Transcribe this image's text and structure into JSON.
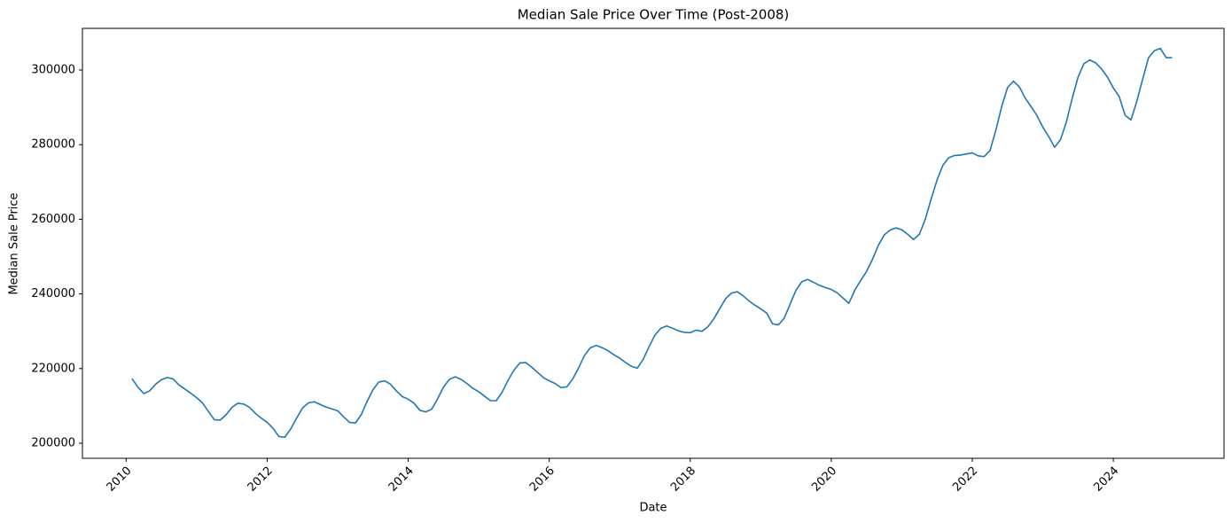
{
  "chart_data": {
    "type": "line",
    "title": "Median Sale Price Over Time (Post-2008)",
    "x_label": "Date",
    "y_label": "Median Sale Price",
    "x": [
      2010.083,
      2010.167,
      2010.25,
      2010.333,
      2010.417,
      2010.5,
      2010.583,
      2010.667,
      2010.75,
      2010.833,
      2010.917,
      2011,
      2011.083,
      2011.167,
      2011.25,
      2011.333,
      2011.417,
      2011.5,
      2011.583,
      2011.667,
      2011.75,
      2011.833,
      2011.917,
      2012,
      2012.083,
      2012.167,
      2012.25,
      2012.333,
      2012.417,
      2012.5,
      2012.583,
      2012.667,
      2012.75,
      2012.833,
      2012.917,
      2013,
      2013.083,
      2013.167,
      2013.25,
      2013.333,
      2013.417,
      2013.5,
      2013.583,
      2013.667,
      2013.75,
      2013.833,
      2013.917,
      2014,
      2014.083,
      2014.167,
      2014.25,
      2014.333,
      2014.417,
      2014.5,
      2014.583,
      2014.667,
      2014.75,
      2014.833,
      2014.917,
      2015,
      2015.083,
      2015.167,
      2015.25,
      2015.333,
      2015.417,
      2015.5,
      2015.583,
      2015.667,
      2015.75,
      2015.833,
      2015.917,
      2016,
      2016.083,
      2016.167,
      2016.25,
      2016.333,
      2016.417,
      2016.5,
      2016.583,
      2016.667,
      2016.75,
      2016.833,
      2016.917,
      2017,
      2017.083,
      2017.167,
      2017.25,
      2017.333,
      2017.417,
      2017.5,
      2017.583,
      2017.667,
      2017.75,
      2017.833,
      2017.917,
      2018,
      2018.083,
      2018.167,
      2018.25,
      2018.333,
      2018.417,
      2018.5,
      2018.583,
      2018.667,
      2018.75,
      2018.833,
      2018.917,
      2019,
      2019.083,
      2019.167,
      2019.25,
      2019.333,
      2019.417,
      2019.5,
      2019.583,
      2019.667,
      2019.75,
      2019.833,
      2019.917,
      2020,
      2020.083,
      2020.167,
      2020.25,
      2020.333,
      2020.417,
      2020.5,
      2020.583,
      2020.667,
      2020.75,
      2020.833,
      2020.917,
      2021,
      2021.083,
      2021.167,
      2021.25,
      2021.333,
      2021.417,
      2021.5,
      2021.583,
      2021.667,
      2021.75,
      2021.833,
      2021.917,
      2022,
      2022.083,
      2022.167,
      2022.25,
      2022.333,
      2022.417,
      2022.5,
      2022.583,
      2022.667,
      2022.75,
      2022.833,
      2022.917,
      2023,
      2023.083,
      2023.167,
      2023.25,
      2023.333,
      2023.417,
      2023.5,
      2023.583,
      2023.667,
      2023.75,
      2023.833,
      2023.917,
      2024,
      2024.083,
      2024.167,
      2024.25,
      2024.333,
      2024.417,
      2024.5,
      2024.583,
      2024.667,
      2024.75,
      2024.833
    ],
    "series": [
      {
        "color": "#1f77b4",
        "values": [
          217300,
          215000,
          213300,
          214000,
          215800,
          217000,
          217600,
          217200,
          215600,
          214500,
          213400,
          212200,
          210800,
          208500,
          206300,
          206200,
          207600,
          209600,
          210700,
          210500,
          209600,
          208000,
          206700,
          205600,
          204000,
          201800,
          201600,
          203800,
          206700,
          209400,
          210800,
          211100,
          210400,
          209700,
          209200,
          208700,
          207100,
          205600,
          205400,
          207600,
          211200,
          214300,
          216400,
          216700,
          215800,
          214000,
          212500,
          211800,
          210700,
          208800,
          208400,
          209100,
          211900,
          215000,
          217100,
          217800,
          217100,
          216000,
          214700,
          213800,
          212600,
          211400,
          211400,
          213700,
          216900,
          219600,
          221500,
          221600,
          220400,
          219000,
          217600,
          216700,
          216000,
          214900,
          215100,
          217200,
          220200,
          223500,
          225600,
          226200,
          225600,
          224800,
          223700,
          222800,
          221600,
          220600,
          220100,
          222500,
          225900,
          229000,
          230800,
          231400,
          230800,
          230100,
          229700,
          229600,
          230300,
          230000,
          231200,
          233300,
          236000,
          238700,
          240200,
          240600,
          239500,
          238100,
          237000,
          236000,
          234900,
          232000,
          231700,
          233500,
          237300,
          241000,
          243300,
          243900,
          243100,
          242300,
          241700,
          241200,
          240300,
          238900,
          237500,
          241000,
          243600,
          246000,
          249200,
          253000,
          255800,
          257100,
          257700,
          257200,
          256000,
          254600,
          256000,
          260000,
          265500,
          270500,
          274500,
          276500,
          277100,
          277200,
          277500,
          277800,
          277000,
          276800,
          278400,
          283800,
          290200,
          295300,
          297000,
          295500,
          292500,
          290200,
          287800,
          284700,
          282200,
          279300,
          281300,
          286000,
          292400,
          298100,
          301700,
          302700,
          301900,
          300300,
          298100,
          295200,
          292900,
          287900,
          286600,
          291600,
          297600,
          303300,
          305200,
          305800,
          303300,
          303300
        ]
      }
    ],
    "xlim": [
      2009.38,
      2025.57
    ],
    "xticks": [
      2010,
      2012,
      2014,
      2016,
      2018,
      2020,
      2022,
      2024
    ],
    "ylim": [
      195960,
      311160
    ],
    "yticks": [
      200000,
      220000,
      240000,
      260000,
      280000,
      300000
    ],
    "grid": false
  }
}
